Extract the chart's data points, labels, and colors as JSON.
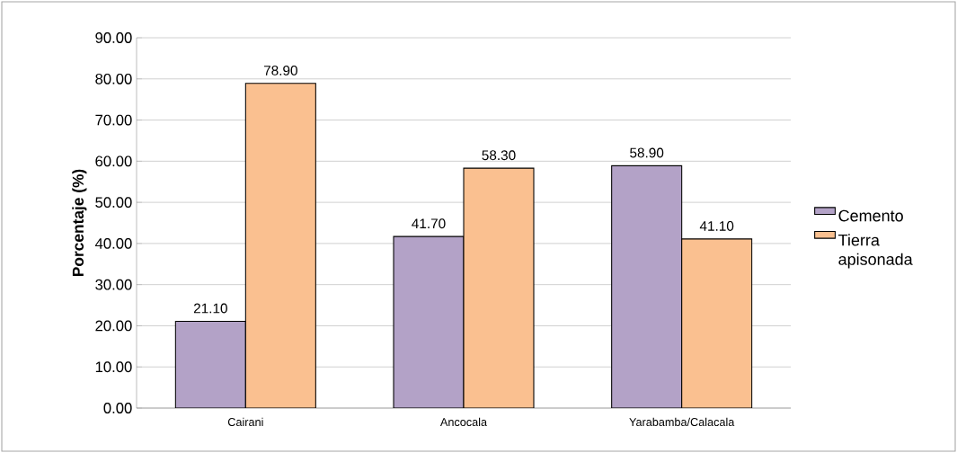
{
  "chart_data": {
    "type": "bar",
    "ylabel": "Porcentaje (%)",
    "categories": [
      "Cairani",
      "Ancocala",
      "Yarabamba/Calacala"
    ],
    "series": [
      {
        "name": "Cemento",
        "color": "#b3a2c7",
        "values": [
          21.1,
          41.7,
          58.9
        ],
        "value_labels": [
          "21.10",
          "41.70",
          "58.90"
        ]
      },
      {
        "name": "Tierra apisonada",
        "color": "#fac090",
        "values": [
          78.9,
          58.3,
          41.1
        ],
        "value_labels": [
          "78.90",
          "58.30",
          "41.10"
        ]
      }
    ],
    "ylim": [
      0,
      90
    ],
    "yticks": [
      {
        "value": 0,
        "label": "0.00"
      },
      {
        "value": 10,
        "label": "10.00"
      },
      {
        "value": 20,
        "label": "20.00"
      },
      {
        "value": 30,
        "label": "30.00"
      },
      {
        "value": 40,
        "label": "40.00"
      },
      {
        "value": 50,
        "label": "50.00"
      },
      {
        "value": 60,
        "label": "60.00"
      },
      {
        "value": 70,
        "label": "70.00"
      },
      {
        "value": 80,
        "label": "80.00"
      },
      {
        "value": 90,
        "label": "90.00"
      }
    ],
    "grid": "y",
    "legend": "right"
  }
}
